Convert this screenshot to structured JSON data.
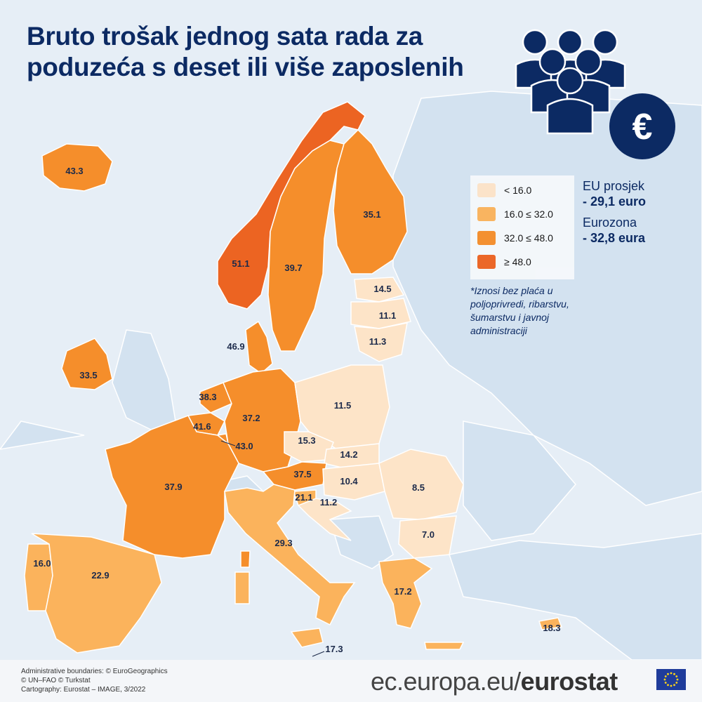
{
  "title_line1": "Bruto trošak jednog sata rada za",
  "title_line2": "poduzeća s deset ili više zaposlenih",
  "legend": [
    {
      "label": "< 16.0",
      "color": "#fde4c8"
    },
    {
      "label": "16.0 ≤ 32.0",
      "color": "#fbb35c"
    },
    {
      "label": "32.0 ≤ 48.0",
      "color": "#f58e2b"
    },
    {
      "label": "≥ 48.0",
      "color": "#ec6422"
    }
  ],
  "eu_label": "EU prosjek",
  "eu_value": "- 29,1 euro",
  "ez_label": "Eurozona",
  "ez_value": "- 32,8 eura",
  "note_lines": [
    "*Iznosi bez plaća u",
    "poljoprivredi, ribarstvu,",
    "šumarstvu i javnoj",
    "administraciji"
  ],
  "values": {
    "iceland": "43.3",
    "norway": "51.1",
    "sweden": "39.7",
    "finland": "35.1",
    "estonia": "14.5",
    "latvia": "11.1",
    "lithuania": "11.3",
    "denmark": "46.9",
    "ireland": "33.5",
    "netherlands": "38.3",
    "belgium": "41.6",
    "luxembourg": "43.0",
    "germany": "37.2",
    "poland": "11.5",
    "czechia": "15.3",
    "slovakia": "14.2",
    "austria": "37.5",
    "hungary": "10.4",
    "slovenia": "21.1",
    "croatia": "11.2",
    "romania": "8.5",
    "bulgaria": "7.0",
    "france": "37.9",
    "portugal": "16.0",
    "spain": "22.9",
    "italy": "29.3",
    "greece": "17.2",
    "cyprus": "18.3",
    "malta": "17.3"
  },
  "credit_lines": [
    "Administrative boundaries: © EuroGeographics",
    "© UN–FAO © Turkstat",
    "Cartography: Eurostat – IMAGE, 3/2022"
  ],
  "brand_prefix": "ec.europa.eu/",
  "brand_bold": "eurostat",
  "icons": {
    "people": "people-group-icon",
    "euro": "euro-icon",
    "flag": "eu-flag-icon"
  },
  "colors": {
    "title": "#0c2a63",
    "sea": "#e6eef6",
    "land_other": "#d3e2f0"
  }
}
